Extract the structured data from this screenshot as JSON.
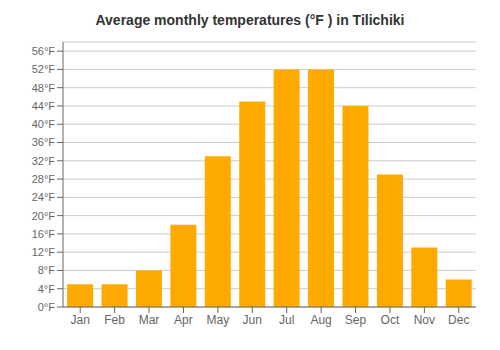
{
  "chart_data": {
    "type": "bar",
    "title": "Average monthly temperatures (°F ) in Tilichiki",
    "categories": [
      "Jan",
      "Feb",
      "Mar",
      "Apr",
      "May",
      "Jun",
      "Jul",
      "Aug",
      "Sep",
      "Oct",
      "Nov",
      "Dec"
    ],
    "values": [
      5,
      5,
      8,
      18,
      33,
      45,
      52,
      52,
      44,
      29,
      13,
      6
    ],
    "color": "#FFAA00",
    "ylim": [
      0,
      58
    ],
    "yticks": [
      {
        "value": 0,
        "label": "0°F"
      },
      {
        "value": 4,
        "label": "4°F"
      },
      {
        "value": 8,
        "label": "8°F"
      },
      {
        "value": 12,
        "label": "12°F"
      },
      {
        "value": 16,
        "label": "16°F"
      },
      {
        "value": 20,
        "label": "20°F"
      },
      {
        "value": 24,
        "label": "24°F"
      },
      {
        "value": 28,
        "label": "28°F"
      },
      {
        "value": 32,
        "label": "32°F"
      },
      {
        "value": 36,
        "label": "36°F"
      },
      {
        "value": 40,
        "label": "40°F"
      },
      {
        "value": 44,
        "label": "44°F"
      },
      {
        "value": 48,
        "label": "48°F"
      },
      {
        "value": 52,
        "label": "52°F"
      },
      {
        "value": 56,
        "label": "56°F"
      }
    ],
    "grid": true
  }
}
